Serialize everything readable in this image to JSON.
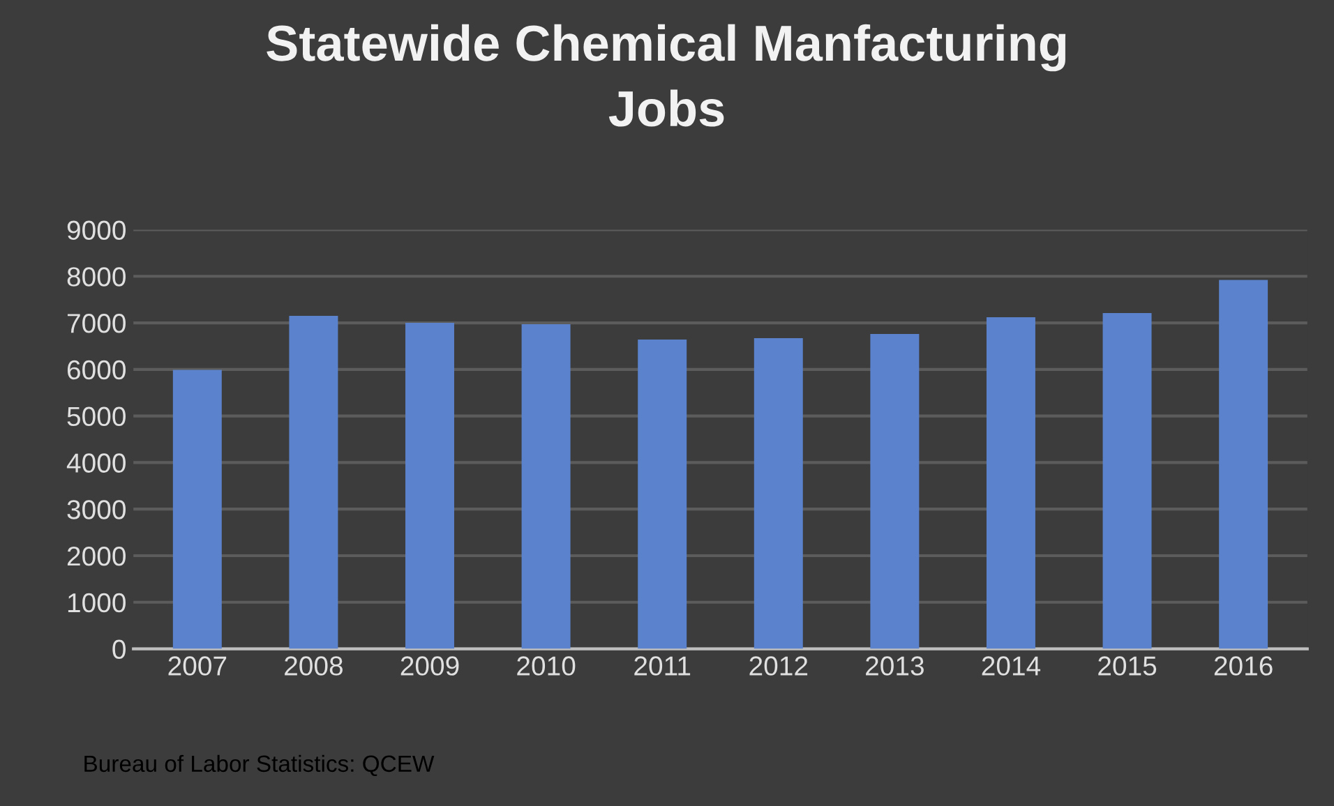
{
  "chart_data": {
    "type": "bar",
    "title": "Statewide Chemical Manfacturing\nJobs",
    "categories": [
      "2007",
      "2008",
      "2009",
      "2010",
      "2011",
      "2012",
      "2013",
      "2014",
      "2015",
      "2016"
    ],
    "values": [
      5990,
      7150,
      7000,
      6970,
      6640,
      6670,
      6760,
      7120,
      7210,
      7920
    ],
    "color": "#5b82cc",
    "ylim": [
      0,
      9000
    ],
    "yticks": [
      0,
      1000,
      2000,
      3000,
      4000,
      5000,
      6000,
      7000,
      8000,
      9000
    ],
    "grid": "y",
    "legend": false,
    "annotations": [
      "Bureau of Labor Statistics: QCEW"
    ]
  }
}
